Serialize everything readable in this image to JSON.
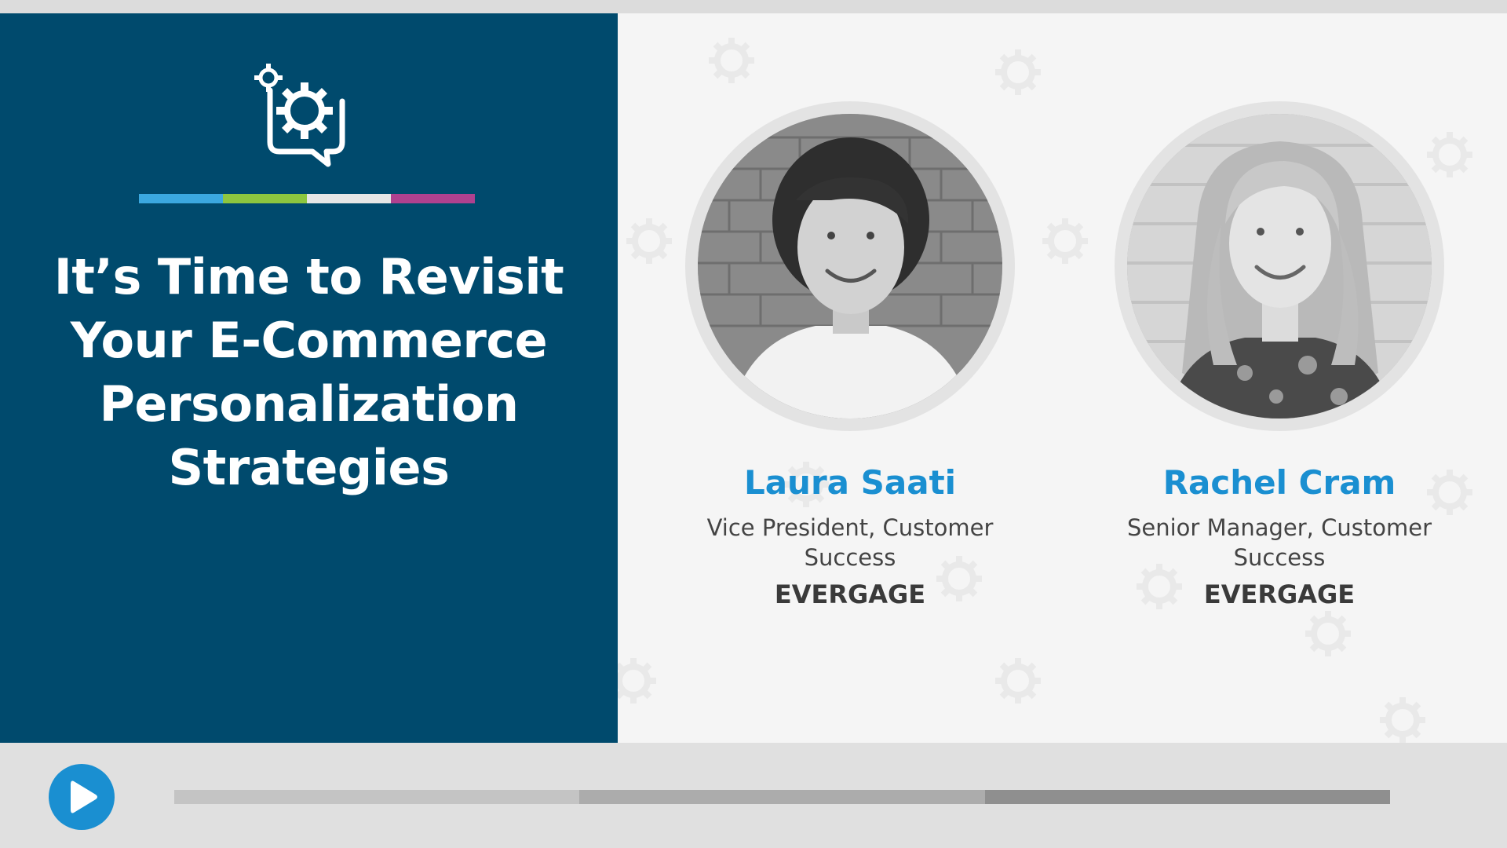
{
  "slide": {
    "title_lines": [
      "It’s Time to Revisit",
      "Your E-Commerce",
      "Personalization",
      "Strategies"
    ],
    "logo_icon": "gear-chat-bubble-icon",
    "stripe_colors": [
      "#3ba8e0",
      "#8dc63f",
      "#e6e6e6",
      "#b0418f"
    ],
    "panel_color": "#004a6d",
    "speakers": [
      {
        "name": "Laura Saati",
        "role": "Vice President, Customer Success",
        "company": "EVERGAGE"
      },
      {
        "name": "Rachel Cram",
        "role": "Senior Manager, Customer Success",
        "company": "EVERGAGE"
      }
    ],
    "accent_color": "#1a8fd1"
  },
  "player": {
    "play_icon": "play-icon",
    "progress_segments": [
      "#c4c4c4",
      "#acacac",
      "#8f8f8f"
    ]
  }
}
